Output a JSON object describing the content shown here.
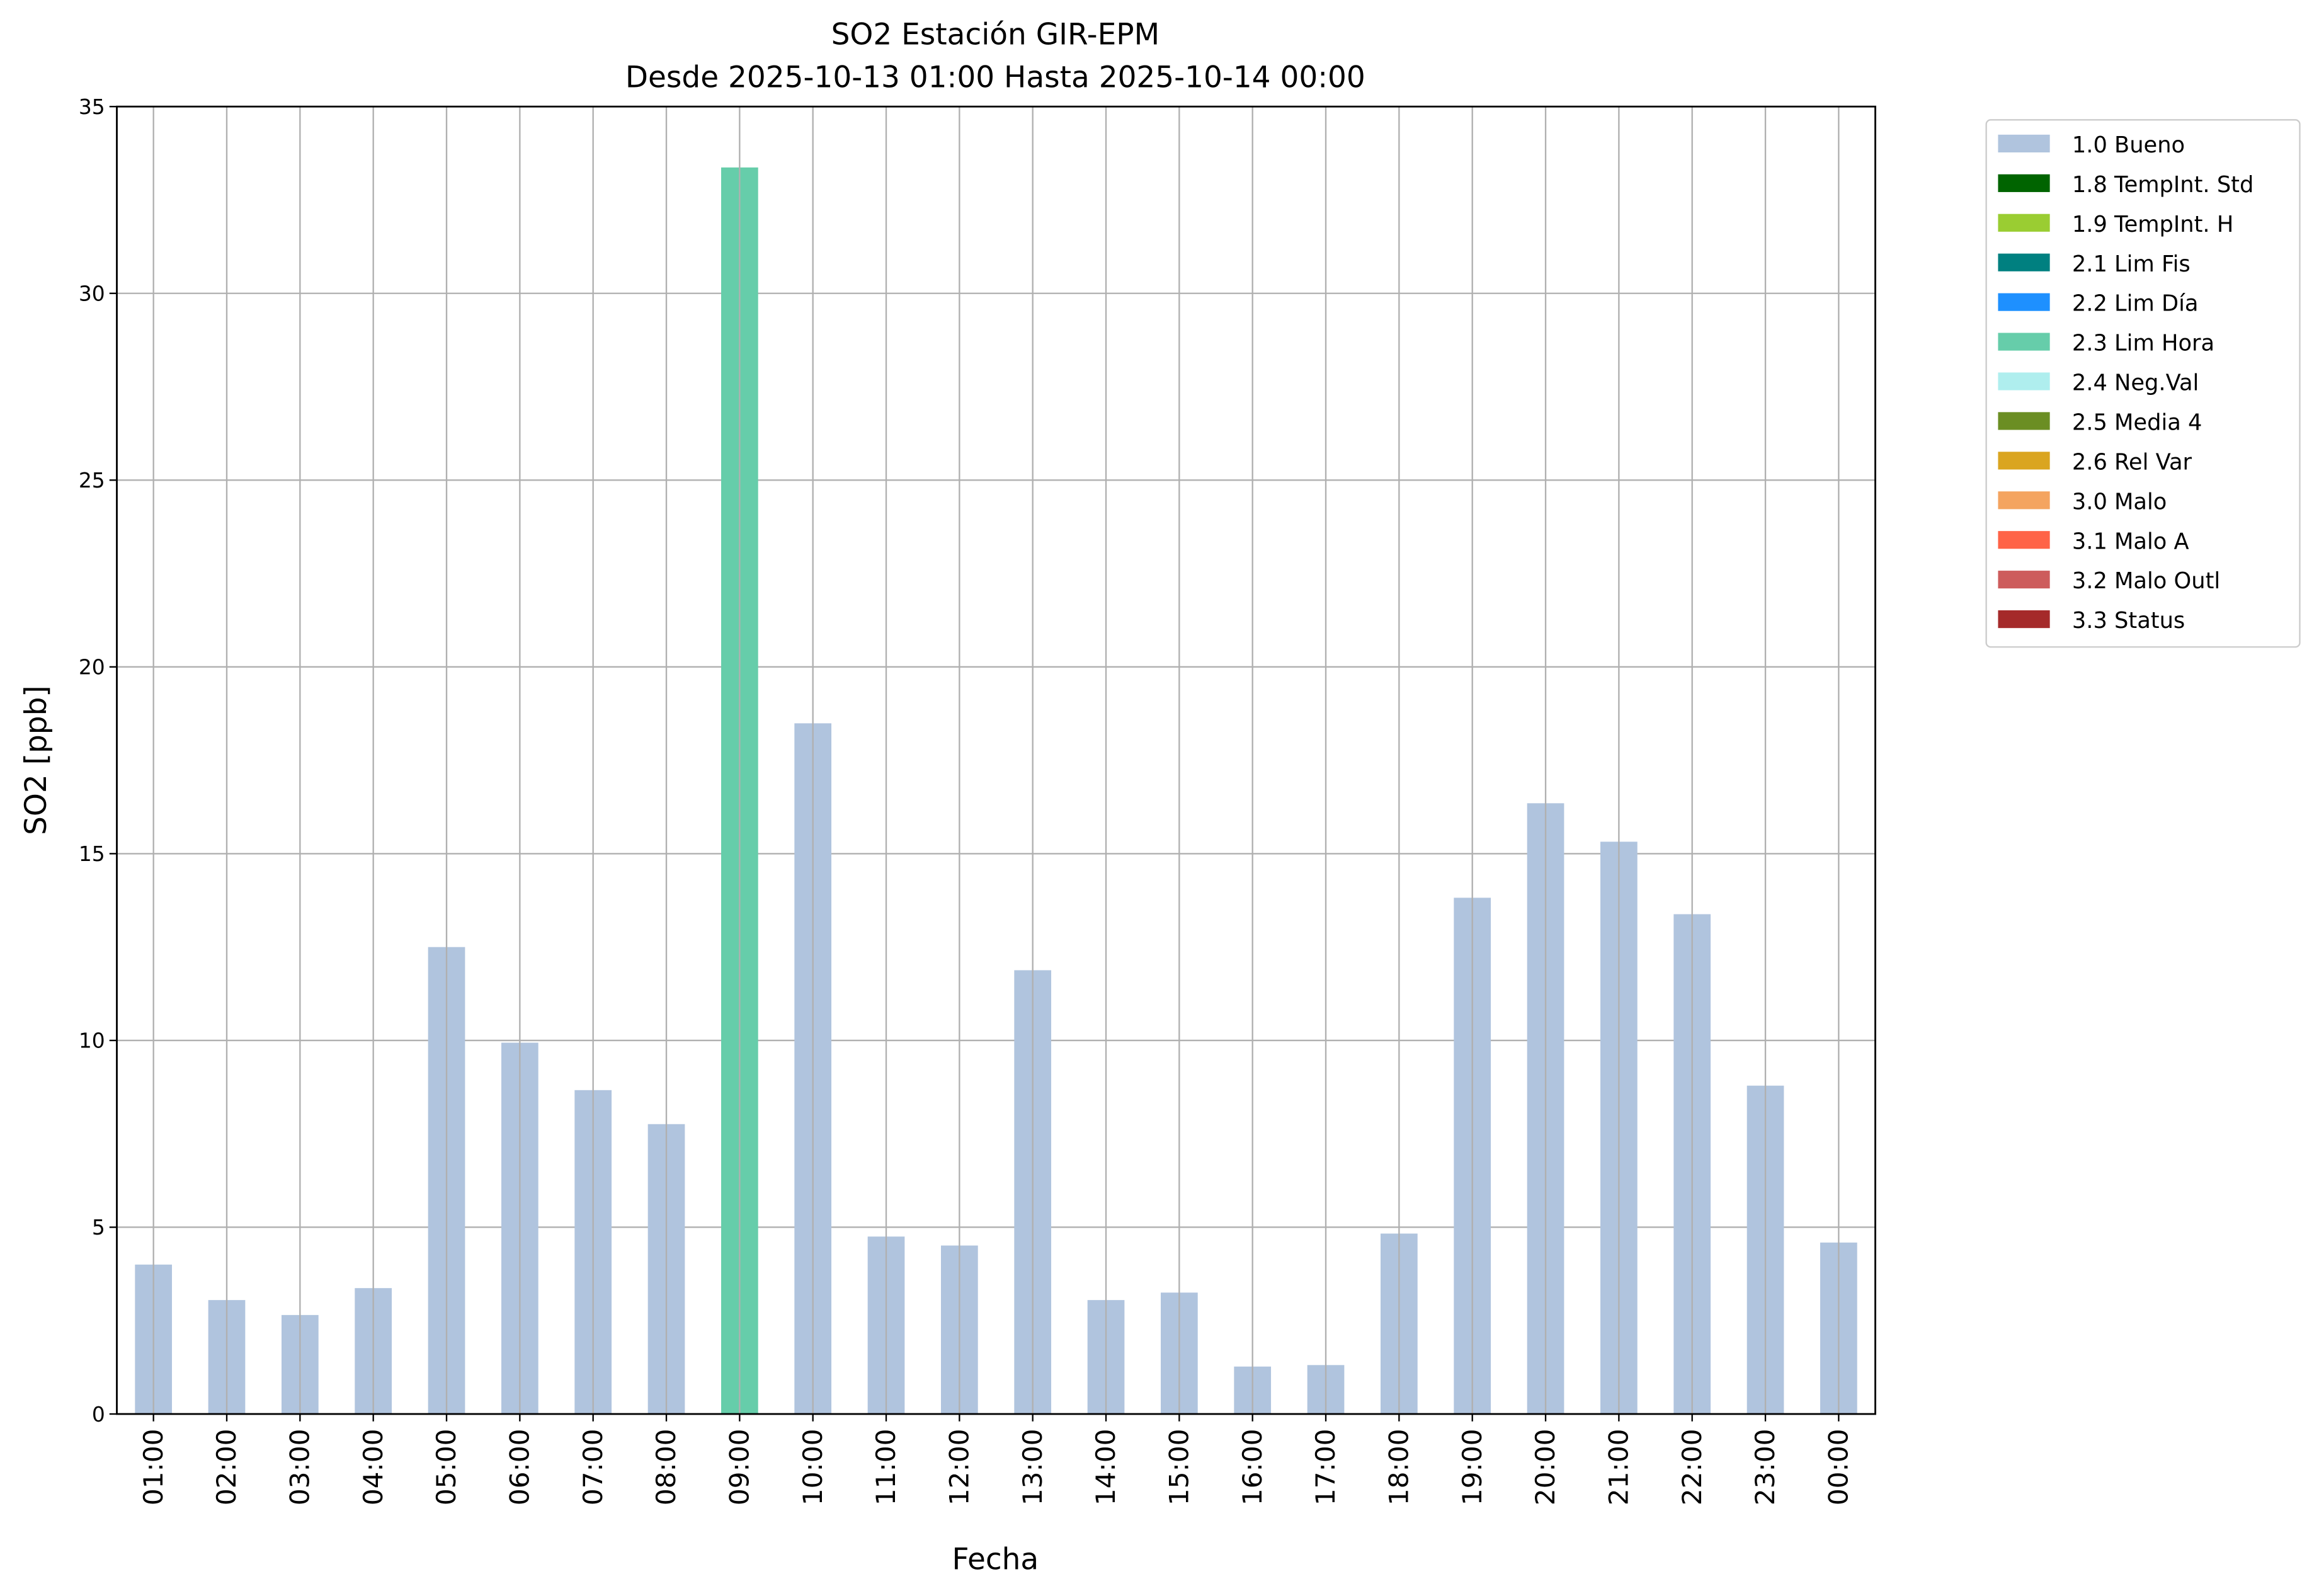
{
  "chart_data": {
    "type": "bar",
    "title": "SO2 Estación GIR-EPM",
    "subtitle": "Desde 2025-10-13 01:00 Hasta 2025-10-14 00:00",
    "xlabel": "Fecha",
    "ylabel": "SO2 [ppb]",
    "ylim": [
      0,
      35
    ],
    "yticks": [
      0,
      5,
      10,
      15,
      20,
      25,
      30,
      35
    ],
    "grid": true,
    "legend_position": "outside-top-right",
    "categories": [
      "01:00",
      "02:00",
      "03:00",
      "04:00",
      "05:00",
      "06:00",
      "07:00",
      "08:00",
      "09:00",
      "10:00",
      "11:00",
      "12:00",
      "13:00",
      "14:00",
      "15:00",
      "16:00",
      "17:00",
      "18:00",
      "19:00",
      "20:00",
      "21:00",
      "22:00",
      "23:00",
      "00:00"
    ],
    "values": [
      4.0,
      3.05,
      2.65,
      3.37,
      12.5,
      9.94,
      8.67,
      7.76,
      33.37,
      18.49,
      4.75,
      4.51,
      11.88,
      3.05,
      3.25,
      1.27,
      1.31,
      4.83,
      13.82,
      16.35,
      15.32,
      13.38,
      8.79,
      4.59
    ],
    "flags": [
      "1.0 Bueno",
      "1.0 Bueno",
      "1.0 Bueno",
      "1.0 Bueno",
      "1.0 Bueno",
      "1.0 Bueno",
      "1.0 Bueno",
      "1.0 Bueno",
      "2.3 Lim Hora",
      "1.0 Bueno",
      "1.0 Bueno",
      "1.0 Bueno",
      "1.0 Bueno",
      "1.0 Bueno",
      "1.0 Bueno",
      "1.0 Bueno",
      "1.0 Bueno",
      "1.0 Bueno",
      "1.0 Bueno",
      "1.0 Bueno",
      "1.0 Bueno",
      "1.0 Bueno",
      "1.0 Bueno",
      "1.0 Bueno"
    ],
    "legend": [
      {
        "label": "1.0 Bueno",
        "color": "#b0c4de"
      },
      {
        "label": "1.8 TempInt. Std",
        "color": "#006400"
      },
      {
        "label": "1.9 TempInt. H",
        "color": "#9acd32"
      },
      {
        "label": "2.1 Lim Fis",
        "color": "#008080"
      },
      {
        "label": "2.2 Lim Día",
        "color": "#1e90ff"
      },
      {
        "label": "2.3 Lim Hora",
        "color": "#66cdaa"
      },
      {
        "label": "2.4 Neg.Val",
        "color": "#afeeee"
      },
      {
        "label": "2.5 Media 4",
        "color": "#6b8e23"
      },
      {
        "label": "2.6 Rel Var",
        "color": "#daa520"
      },
      {
        "label": "3.0 Malo",
        "color": "#f4a460"
      },
      {
        "label": "3.1 Malo A",
        "color": "#ff6347"
      },
      {
        "label": "3.2 Malo Outl",
        "color": "#cd5c5c"
      },
      {
        "label": "3.3 Status",
        "color": "#a52a2a"
      }
    ]
  }
}
